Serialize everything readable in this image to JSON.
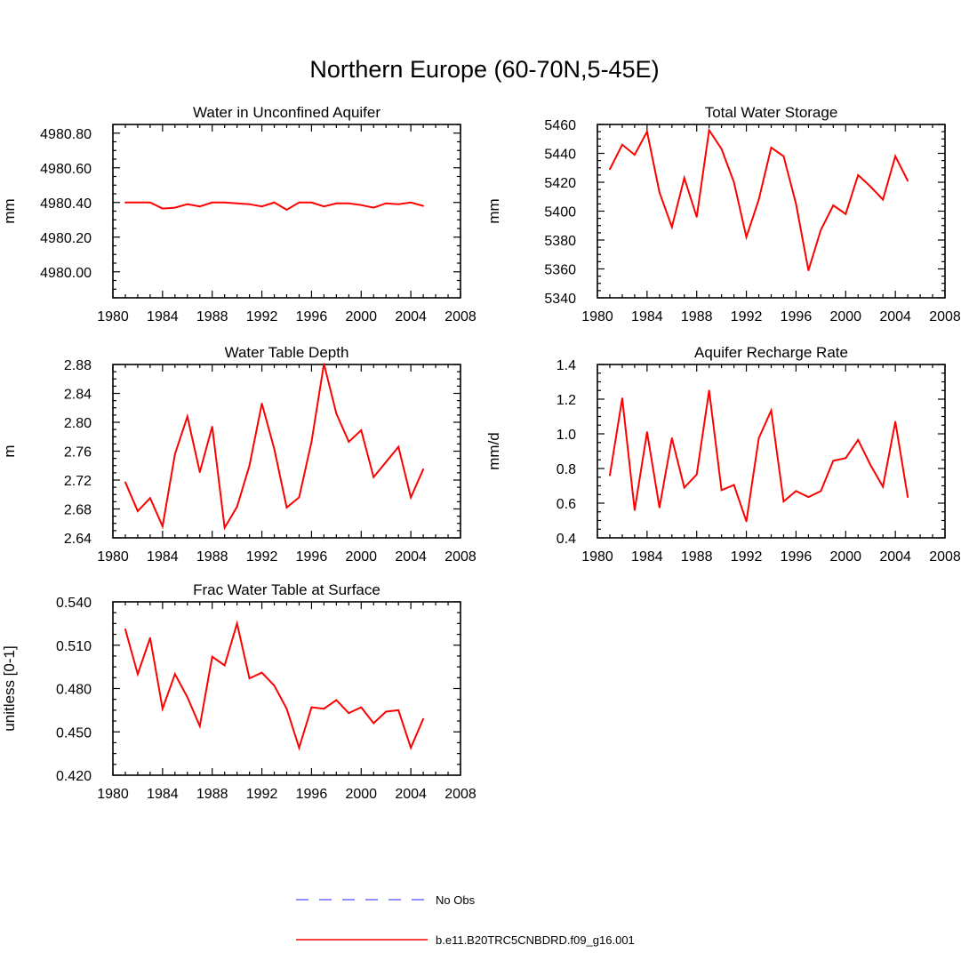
{
  "title": "Northern Europe (60-70N,5-45E)",
  "colors": {
    "model": "#ff0000",
    "obs": "#6a6aff"
  },
  "legend": {
    "entries": [
      {
        "label": "No Obs",
        "style": "dashed",
        "color": "#6a6aff"
      },
      {
        "label": "b.e11.B20TRC5CNBDRD.f09_g16.001",
        "style": "solid",
        "color": "#ff0000"
      }
    ]
  },
  "chart_data": [
    {
      "type": "line",
      "title": "Water in Unconfined Aquifer",
      "ylabel": "mm",
      "xlim": [
        1980,
        2008
      ],
      "ylim": [
        4979.85,
        4980.85
      ],
      "xticks": [
        1980,
        1984,
        1988,
        1992,
        1996,
        2000,
        2004,
        2008
      ],
      "yticks": [
        4980.0,
        4980.2,
        4980.4,
        4980.6,
        4980.8
      ],
      "ytick_labels": [
        "4980.00",
        "4980.20",
        "4980.40",
        "4980.60",
        "4980.80"
      ],
      "x": [
        1981,
        1982,
        1983,
        1984,
        1985,
        1986,
        1987,
        1988,
        1989,
        1990,
        1991,
        1992,
        1993,
        1994,
        1995,
        1996,
        1997,
        1998,
        1999,
        2000,
        2001,
        2002,
        2003,
        2004,
        2005
      ],
      "series": [
        {
          "values": [
            4980.4,
            4980.4,
            4980.4,
            4980.365,
            4980.37,
            4980.39,
            4980.377,
            4980.4,
            4980.4,
            4980.395,
            4980.39,
            4980.377,
            4980.4,
            4980.358,
            4980.4,
            4980.4,
            4980.377,
            4980.395,
            4980.395,
            4980.385,
            4980.37,
            4980.395,
            4980.39,
            4980.4,
            4980.38
          ]
        }
      ]
    },
    {
      "type": "line",
      "title": "Total Water Storage",
      "ylabel": "mm",
      "xlim": [
        1980,
        2008
      ],
      "ylim": [
        5340,
        5460
      ],
      "xticks": [
        1980,
        1984,
        1988,
        1992,
        1996,
        2000,
        2004,
        2008
      ],
      "yticks": [
        5340,
        5360,
        5380,
        5400,
        5420,
        5440,
        5460
      ],
      "ytick_labels": [
        "5340",
        "5360",
        "5380",
        "5400",
        "5420",
        "5440",
        "5460"
      ],
      "x": [
        1981,
        1982,
        1983,
        1984,
        1985,
        1986,
        1987,
        1988,
        1989,
        1990,
        1991,
        1992,
        1993,
        1994,
        1995,
        1996,
        1997,
        1998,
        1999,
        2000,
        2001,
        2002,
        2003,
        2004,
        2005
      ],
      "series": [
        {
          "values": [
            5429,
            5446,
            5439,
            5455,
            5413,
            5389,
            5423,
            5396,
            5456,
            5443,
            5420,
            5382,
            5408,
            5444,
            5438,
            5405,
            5359,
            5387,
            5404,
            5398,
            5425,
            5417,
            5408,
            5438,
            5421
          ]
        }
      ]
    },
    {
      "type": "line",
      "title": "Water Table Depth",
      "ylabel": "m",
      "xlim": [
        1980,
        2008
      ],
      "ylim": [
        2.64,
        2.88
      ],
      "xticks": [
        1980,
        1984,
        1988,
        1992,
        1996,
        2000,
        2004,
        2008
      ],
      "yticks": [
        2.64,
        2.68,
        2.72,
        2.76,
        2.8,
        2.84,
        2.88
      ],
      "ytick_labels": [
        "2.64",
        "2.68",
        "2.72",
        "2.76",
        "2.80",
        "2.84",
        "2.88"
      ],
      "x": [
        1981,
        1982,
        1983,
        1984,
        1985,
        1986,
        1987,
        1988,
        1989,
        1990,
        1991,
        1992,
        1993,
        1994,
        1995,
        1996,
        1997,
        1998,
        1999,
        2000,
        2001,
        2002,
        2003,
        2004,
        2005
      ],
      "series": [
        {
          "values": [
            2.717,
            2.677,
            2.695,
            2.656,
            2.756,
            2.808,
            2.731,
            2.794,
            2.654,
            2.683,
            2.74,
            2.826,
            2.763,
            2.682,
            2.696,
            2.773,
            2.881,
            2.812,
            2.773,
            2.789,
            2.724,
            2.745,
            2.766,
            2.696,
            2.735
          ]
        }
      ]
    },
    {
      "type": "line",
      "title": "Aquifer Recharge Rate",
      "ylabel": "mm/d",
      "xlim": [
        1980,
        2008
      ],
      "ylim": [
        0.4,
        1.4
      ],
      "xticks": [
        1980,
        1984,
        1988,
        1992,
        1996,
        2000,
        2004,
        2008
      ],
      "yticks": [
        0.4,
        0.6,
        0.8,
        1.0,
        1.2,
        1.4
      ],
      "ytick_labels": [
        "0.4",
        "0.6",
        "0.8",
        "1.0",
        "1.2",
        "1.4"
      ],
      "x": [
        1981,
        1982,
        1983,
        1984,
        1985,
        1986,
        1987,
        1988,
        1989,
        1990,
        1991,
        1992,
        1993,
        1994,
        1995,
        1996,
        1997,
        1998,
        1999,
        2000,
        2001,
        2002,
        2003,
        2004,
        2005
      ],
      "series": [
        {
          "values": [
            0.76,
            1.205,
            0.56,
            1.01,
            0.575,
            0.975,
            0.69,
            0.765,
            1.25,
            0.675,
            0.705,
            0.495,
            0.975,
            1.135,
            0.61,
            0.67,
            0.635,
            0.67,
            0.845,
            0.86,
            0.965,
            0.82,
            0.695,
            1.07,
            0.635
          ]
        }
      ]
    },
    {
      "type": "line",
      "title": "Frac Water Table at Surface",
      "ylabel": "unitless [0-1]",
      "xlim": [
        1980,
        2008
      ],
      "ylim": [
        0.42,
        0.54
      ],
      "xticks": [
        1980,
        1984,
        1988,
        1992,
        1996,
        2000,
        2004,
        2008
      ],
      "yticks": [
        0.42,
        0.45,
        0.48,
        0.51,
        0.54
      ],
      "ytick_labels": [
        "0.420",
        "0.450",
        "0.480",
        "0.510",
        "0.540"
      ],
      "x": [
        1981,
        1982,
        1983,
        1984,
        1985,
        1986,
        1987,
        1988,
        1989,
        1990,
        1991,
        1992,
        1993,
        1994,
        1995,
        1996,
        1997,
        1998,
        1999,
        2000,
        2001,
        2002,
        2003,
        2004,
        2005
      ],
      "series": [
        {
          "values": [
            0.521,
            0.49,
            0.515,
            0.466,
            0.49,
            0.474,
            0.454,
            0.502,
            0.496,
            0.525,
            0.487,
            0.491,
            0.482,
            0.466,
            0.439,
            0.467,
            0.466,
            0.472,
            0.463,
            0.467,
            0.456,
            0.464,
            0.465,
            0.439,
            0.459
          ]
        }
      ]
    }
  ]
}
